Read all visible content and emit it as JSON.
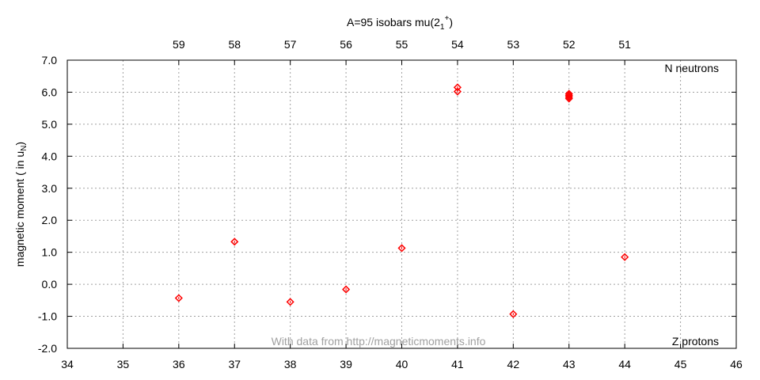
{
  "chart_data": {
    "type": "scatter",
    "title": "A=95 isobars mu(2",
    "title_sub": "1",
    "title_sup": "+",
    "title_close": ")",
    "ylabel": "magnetic moment ( in u",
    "ylabel_sub": "N",
    "ylabel_close": ")",
    "xlim": [
      34,
      46
    ],
    "ylim": [
      -2.0,
      7.0
    ],
    "x_ticks": [
      "34",
      "35",
      "36",
      "37",
      "38",
      "39",
      "40",
      "41",
      "42",
      "43",
      "44",
      "45",
      "46"
    ],
    "y_ticks": [
      "-2.0",
      "-1.0",
      "0.0",
      "1.0",
      "2.0",
      "3.0",
      "4.0",
      "5.0",
      "6.0",
      "7.0"
    ],
    "top_ticks": [
      {
        "z": 36,
        "label": "59"
      },
      {
        "z": 37,
        "label": "58"
      },
      {
        "z": 38,
        "label": "57"
      },
      {
        "z": 39,
        "label": "56"
      },
      {
        "z": 40,
        "label": "55"
      },
      {
        "z": 41,
        "label": "54"
      },
      {
        "z": 42,
        "label": "53"
      },
      {
        "z": 43,
        "label": "52"
      },
      {
        "z": 44,
        "label": "51"
      }
    ],
    "corner_top": "N neutrons",
    "corner_bottom": "Z protons",
    "credit": "With data from http://magneticmoments.info",
    "grid": true,
    "marker_color": "#ff0000",
    "points": [
      {
        "x": 36,
        "y": -0.43
      },
      {
        "x": 37,
        "y": 1.33
      },
      {
        "x": 38,
        "y": -0.55
      },
      {
        "x": 39,
        "y": -0.16
      },
      {
        "x": 40,
        "y": 1.13
      },
      {
        "x": 41,
        "y": 6.15
      },
      {
        "x": 41,
        "y": 6.02
      },
      {
        "x": 42,
        "y": -0.93
      },
      {
        "x": 43,
        "y": 5.95
      },
      {
        "x": 43,
        "y": 5.9
      },
      {
        "x": 43,
        "y": 5.85
      },
      {
        "x": 43,
        "y": 5.8
      },
      {
        "x": 44,
        "y": 0.85
      }
    ]
  }
}
